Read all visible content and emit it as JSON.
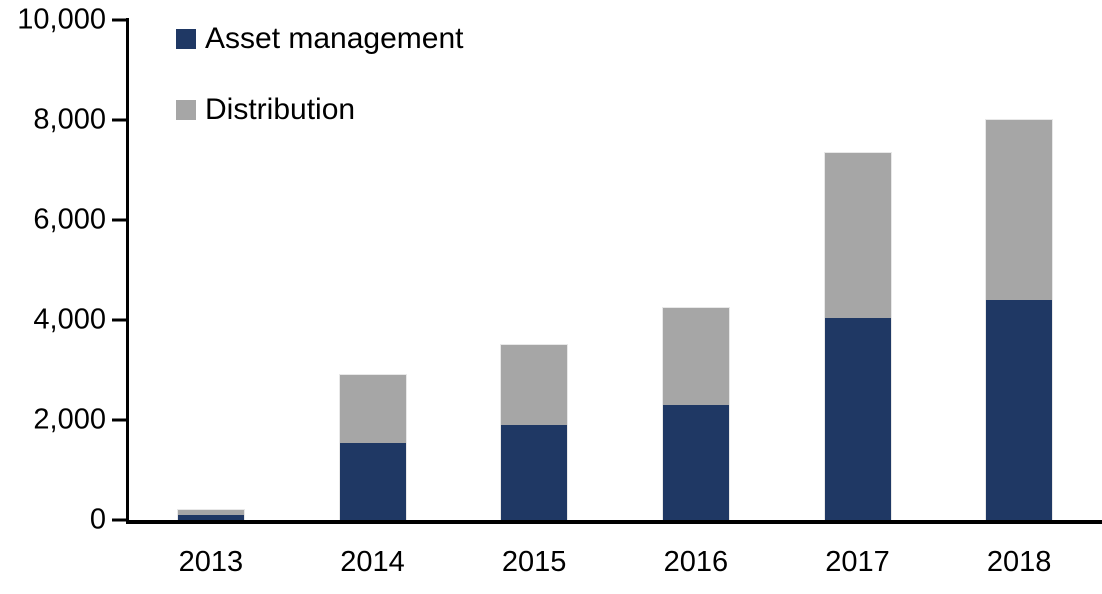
{
  "chart_data": {
    "type": "bar",
    "stacked": true,
    "title": "",
    "xlabel": "",
    "ylabel": "",
    "categories": [
      "2013",
      "2014",
      "2015",
      "2016",
      "2017",
      "2018"
    ],
    "series": [
      {
        "name": "Asset management",
        "color": "#1F3864",
        "values": [
          100,
          1550,
          1900,
          2300,
          4050,
          4400
        ]
      },
      {
        "name": "Distribution",
        "color": "#A6A6A6",
        "values": [
          100,
          1350,
          1600,
          1950,
          3300,
          3600
        ]
      }
    ],
    "totals": [
      200,
      2900,
      3500,
      4250,
      7350,
      8000
    ],
    "ylim": [
      0,
      10000
    ],
    "yticks": [
      {
        "value": 0,
        "label": "0"
      },
      {
        "value": 2000,
        "label": "2,000"
      },
      {
        "value": 4000,
        "label": "4,000"
      },
      {
        "value": 6000,
        "label": "6,000"
      },
      {
        "value": 8000,
        "label": "8,000"
      },
      {
        "value": 10000,
        "label": "10,000"
      }
    ],
    "grid": false,
    "legend_position": "top-left",
    "axis_color": "#000000",
    "text_color": "#000000",
    "background_color": "#FFFFFF"
  }
}
